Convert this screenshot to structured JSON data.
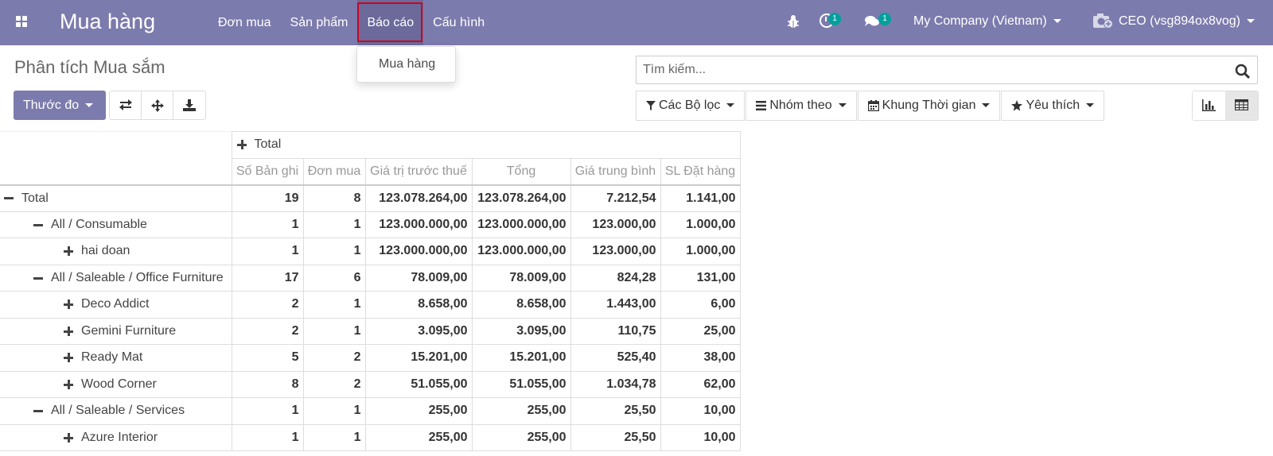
{
  "navbar": {
    "brand": "Mua hàng",
    "menu": [
      "Đơn mua",
      "Sản phẩm",
      "Báo cáo",
      "Cấu hình"
    ],
    "activity_count": "1",
    "message_count": "1",
    "company": "My Company (Vietnam)",
    "user": "CEO (vsg894ox8vog)"
  },
  "dropdown": {
    "item": "Mua hàng"
  },
  "control": {
    "title": "Phân tích Mua sắm",
    "measure_label": "Thước đo",
    "search_placeholder": "Tìm kiếm...",
    "filters_label": "Các Bộ lọc",
    "groupby_label": "Nhóm theo",
    "timeframe_label": "Khung Thời gian",
    "favorites_label": "Yêu thích"
  },
  "pivot": {
    "header_total": "Total",
    "measures": [
      "Số Bản ghi",
      "Đơn mua",
      "Giá trị trước thuế",
      "Tổng",
      "Giá trung bình",
      "SL Đặt hàng"
    ],
    "rows": [
      {
        "label": "Total",
        "level": 0,
        "expanded": true,
        "values": [
          "19",
          "8",
          "123.078.264,00",
          "123.078.264,00",
          "7.212,54",
          "1.141,00"
        ]
      },
      {
        "label": "All / Consumable",
        "level": 1,
        "expanded": true,
        "values": [
          "1",
          "1",
          "123.000.000,00",
          "123.000.000,00",
          "123.000,00",
          "1.000,00"
        ]
      },
      {
        "label": "hai doan",
        "level": 2,
        "expanded": false,
        "values": [
          "1",
          "1",
          "123.000.000,00",
          "123.000.000,00",
          "123.000,00",
          "1.000,00"
        ]
      },
      {
        "label": "All / Saleable / Office Furniture",
        "level": 1,
        "expanded": true,
        "values": [
          "17",
          "6",
          "78.009,00",
          "78.009,00",
          "824,28",
          "131,00"
        ]
      },
      {
        "label": "Deco Addict",
        "level": 2,
        "expanded": false,
        "values": [
          "2",
          "1",
          "8.658,00",
          "8.658,00",
          "1.443,00",
          "6,00"
        ]
      },
      {
        "label": "Gemini Furniture",
        "level": 2,
        "expanded": false,
        "values": [
          "2",
          "1",
          "3.095,00",
          "3.095,00",
          "110,75",
          "25,00"
        ]
      },
      {
        "label": "Ready Mat",
        "level": 2,
        "expanded": false,
        "values": [
          "5",
          "2",
          "15.201,00",
          "15.201,00",
          "525,40",
          "38,00"
        ]
      },
      {
        "label": "Wood Corner",
        "level": 2,
        "expanded": false,
        "values": [
          "8",
          "2",
          "51.055,00",
          "51.055,00",
          "1.034,78",
          "62,00"
        ]
      },
      {
        "label": "All / Saleable / Services",
        "level": 1,
        "expanded": true,
        "values": [
          "1",
          "1",
          "255,00",
          "255,00",
          "25,50",
          "10,00"
        ]
      },
      {
        "label": "Azure Interior",
        "level": 2,
        "expanded": false,
        "values": [
          "1",
          "1",
          "255,00",
          "255,00",
          "25,50",
          "10,00"
        ]
      }
    ]
  },
  "colors": {
    "navbar": "#7c7bad",
    "badge": "#00a09d",
    "highlight": "#d0021b"
  }
}
